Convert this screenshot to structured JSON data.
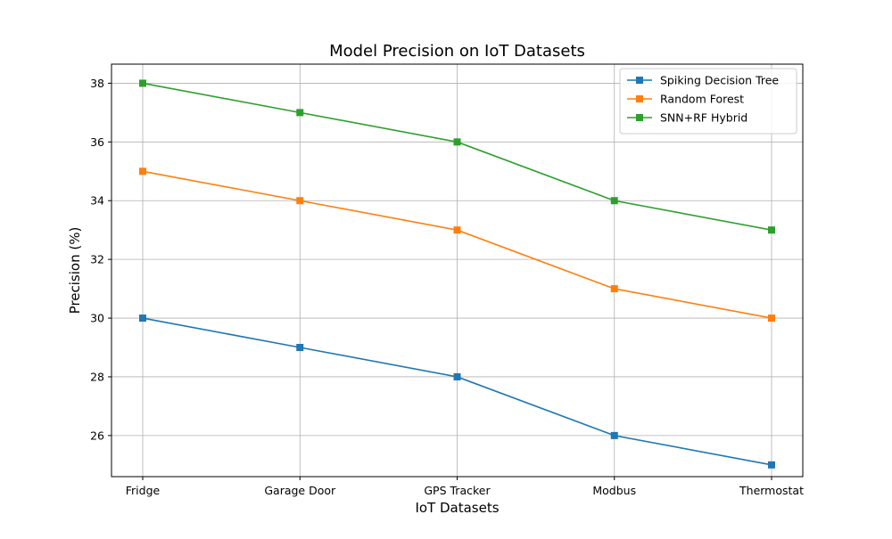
{
  "chart_data": {
    "type": "line",
    "title": "Model Precision on IoT Datasets",
    "xlabel": "IoT Datasets",
    "ylabel": "Precision (%)",
    "categories": [
      "Fridge",
      "Garage Door",
      "GPS Tracker",
      "Modbus",
      "Thermostat"
    ],
    "ylim": [
      24.6,
      38.65
    ],
    "yticks": [
      26,
      28,
      30,
      32,
      34,
      36,
      38
    ],
    "grid": true,
    "legend_position": "top-right",
    "marker": "square",
    "series": [
      {
        "name": "Spiking Decision Tree",
        "color": "#1f77b4",
        "values": [
          30,
          29,
          28,
          26,
          25
        ]
      },
      {
        "name": "Random Forest",
        "color": "#ff7f0e",
        "values": [
          35,
          34,
          33,
          31,
          30
        ]
      },
      {
        "name": "SNN+RF Hybrid",
        "color": "#2ca02c",
        "values": [
          38,
          37,
          36,
          34,
          33
        ]
      }
    ]
  }
}
